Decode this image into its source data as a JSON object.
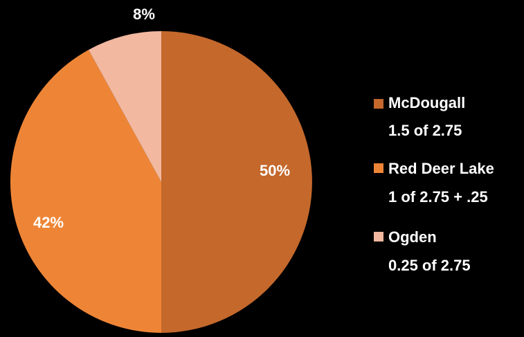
{
  "background": "#000000",
  "chart_data": {
    "type": "pie",
    "title": "",
    "start_angle_deg": 0,
    "direction": "clockwise",
    "slices": [
      {
        "name": "McDougall",
        "value": 50,
        "label": "50%",
        "legend_line1": "McDougall",
        "legend_line2": "1.5 of 2.75",
        "color": "#C4682C"
      },
      {
        "name": "Red Deer Lake",
        "value": 42,
        "label": "42%",
        "legend_line1": "Red Deer Lake",
        "legend_line2": "1 of 2.75 + .25",
        "color": "#EE8536"
      },
      {
        "name": "Ogden",
        "value": 8,
        "label": "8%",
        "legend_line1": "Ogden",
        "legend_line2": "0.25 of 2.75",
        "color": "#F2B8A0"
      }
    ],
    "legend": {
      "position": "right"
    },
    "text_color": "#FFFFFF"
  }
}
